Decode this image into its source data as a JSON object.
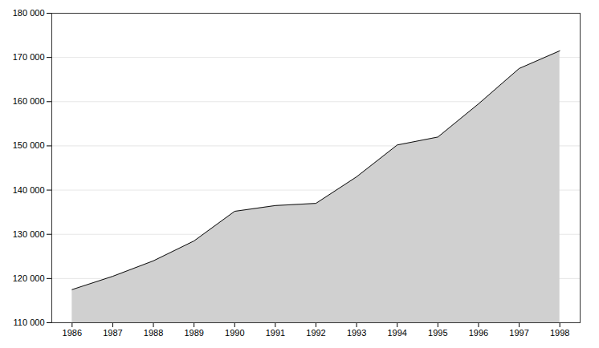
{
  "chart_data": {
    "type": "area",
    "x": [
      1986,
      1987,
      1988,
      1989,
      1990,
      1991,
      1992,
      1993,
      1994,
      1995,
      1996,
      1997,
      1998
    ],
    "values": [
      117500,
      120500,
      124000,
      128500,
      135200,
      136500,
      137000,
      143000,
      150200,
      152000,
      159500,
      167500,
      171500
    ],
    "color": "#111111",
    "xlim": [
      1985.5,
      1998.5
    ],
    "xticks": [
      1986,
      1987,
      1988,
      1989,
      1990,
      1991,
      1992,
      1993,
      1994,
      1995,
      1996,
      1997,
      1998
    ],
    "ylim": [
      110000,
      180000
    ],
    "yticks": [
      {
        "value": 110000,
        "label": "110 000"
      },
      {
        "value": 120000,
        "label": "120 000"
      },
      {
        "value": 130000,
        "label": "130 000"
      },
      {
        "value": 140000,
        "label": "140 000"
      },
      {
        "value": 150000,
        "label": "150 000"
      },
      {
        "value": 160000,
        "label": "160 000"
      },
      {
        "value": 170000,
        "label": "170 000"
      },
      {
        "value": 180000,
        "label": "180 000"
      }
    ],
    "grid": true
  }
}
